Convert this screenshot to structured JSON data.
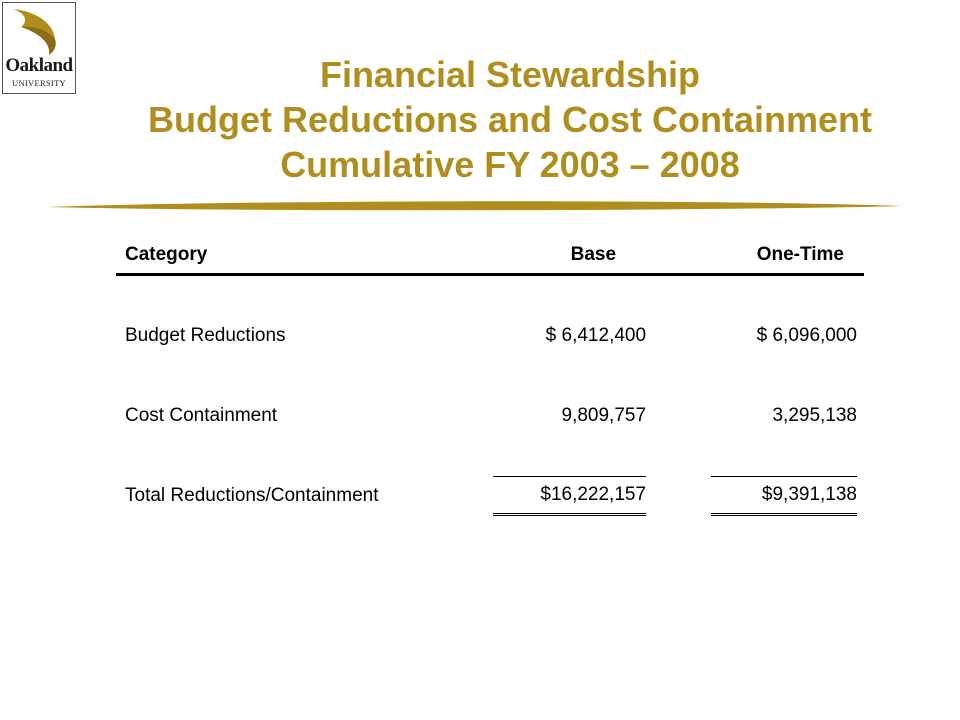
{
  "logo": {
    "name_line1": "Oakland",
    "name_line2": "UNIVERSITY",
    "icon": "oakland-sail-logo",
    "color": "#b08e1e"
  },
  "title": {
    "line1": "Financial Stewardship",
    "line2": "Budget Reductions and Cost Containment",
    "line3": "Cumulative FY 2003 – 2008",
    "color": "#b08e1e"
  },
  "table": {
    "headers": {
      "category": "Category",
      "base": "Base",
      "one_time": "One-Time"
    },
    "rows": [
      {
        "category": "Budget Reductions",
        "base": "$ 6,412,400",
        "one_time": "$ 6,096,000"
      },
      {
        "category": "Cost Containment",
        "base": "9,809,757",
        "one_time": "3,295,138"
      }
    ],
    "total": {
      "category": "Total Reductions/Containment",
      "base": "$16,222,157",
      "one_time": "$9,391,138"
    }
  }
}
